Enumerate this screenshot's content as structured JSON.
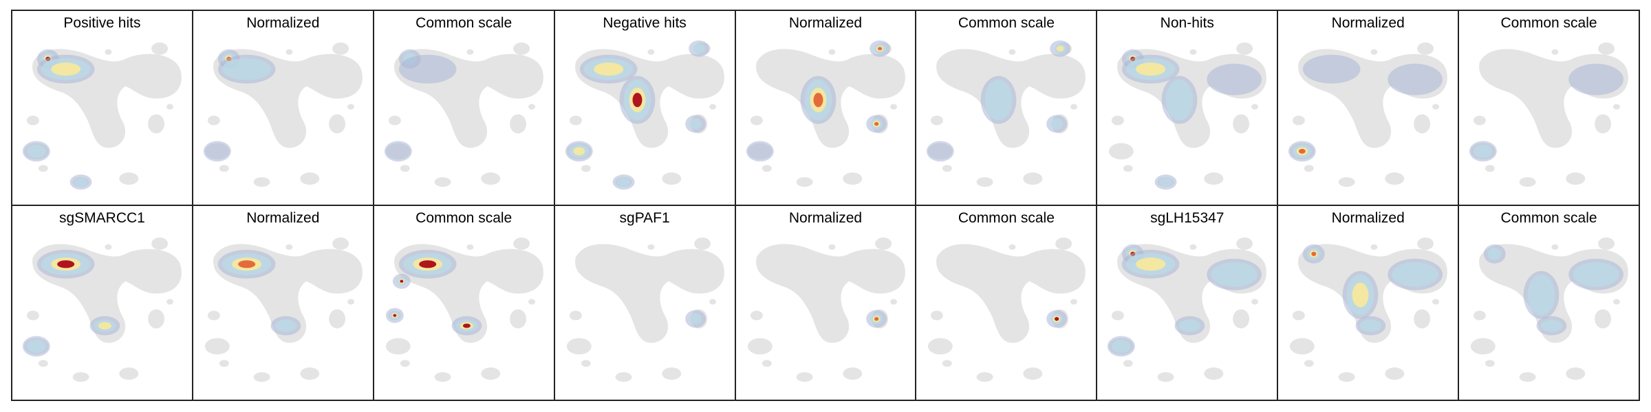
{
  "figure": {
    "rows": [
      {
        "panels": [
          {
            "title": "Positive hits",
            "condition": "Positive hits",
            "view": "raw",
            "hotspots": [
              {
                "region": "top-left-spot",
                "level": 1.0
              },
              {
                "region": "upper-left-arm",
                "level": 0.55
              },
              {
                "region": "lower-left-islands",
                "level": 0.45
              },
              {
                "region": "bottom-small-islands",
                "level": 0.35
              }
            ]
          },
          {
            "title": "Normalized",
            "condition": "Positive hits",
            "view": "normalized",
            "hotspots": [
              {
                "region": "top-left-spot",
                "level": 0.9
              },
              {
                "region": "upper-left-arm",
                "level": 0.45
              },
              {
                "region": "lower-left-islands",
                "level": 0.3
              }
            ]
          },
          {
            "title": "Common scale",
            "condition": "Positive hits",
            "view": "common",
            "hotspots": [
              {
                "region": "top-left-spot",
                "level": 0.45
              },
              {
                "region": "upper-left-arm",
                "level": 0.3
              },
              {
                "region": "lower-left-islands",
                "level": 0.25
              }
            ]
          },
          {
            "title": "Negative hits",
            "condition": "Negative hits",
            "view": "raw",
            "hotspots": [
              {
                "region": "center-stem",
                "level": 0.95
              },
              {
                "region": "upper-left-arm",
                "level": 0.6
              },
              {
                "region": "lower-left-islands",
                "level": 0.55
              },
              {
                "region": "top-right-spot",
                "level": 0.4
              },
              {
                "region": "right-middle-spot",
                "level": 0.45
              },
              {
                "region": "bottom-small-islands",
                "level": 0.45
              }
            ]
          },
          {
            "title": "Normalized",
            "condition": "Negative hits",
            "view": "normalized",
            "hotspots": [
              {
                "region": "top-right-spot",
                "level": 0.9
              },
              {
                "region": "right-middle-spot",
                "level": 0.8
              },
              {
                "region": "center-stem",
                "level": 0.85
              },
              {
                "region": "lower-left-islands",
                "level": 0.3
              }
            ]
          },
          {
            "title": "Common scale",
            "condition": "Negative hits",
            "view": "common",
            "hotspots": [
              {
                "region": "top-right-spot",
                "level": 0.55
              },
              {
                "region": "right-middle-spot",
                "level": 0.5
              },
              {
                "region": "center-stem",
                "level": 0.4
              },
              {
                "region": "lower-left-islands",
                "level": 0.25
              }
            ]
          },
          {
            "title": "Non-hits",
            "condition": "Non-hits",
            "view": "raw",
            "hotspots": [
              {
                "region": "top-left-spot",
                "level": 1.0
              },
              {
                "region": "upper-left-arm",
                "level": 0.6
              },
              {
                "region": "center-stem",
                "level": 0.35
              },
              {
                "region": "right-loop",
                "level": 0.3
              },
              {
                "region": "bottom-small-islands",
                "level": 0.5
              }
            ]
          },
          {
            "title": "Normalized",
            "condition": "Non-hits",
            "view": "normalized",
            "hotspots": [
              {
                "region": "lower-left-islands",
                "level": 0.9
              },
              {
                "region": "right-loop",
                "level": 0.3
              },
              {
                "region": "upper-left-arm",
                "level": 0.3
              }
            ]
          },
          {
            "title": "Common scale",
            "condition": "Non-hits",
            "view": "common",
            "hotspots": [
              {
                "region": "lower-left-islands",
                "level": 0.4
              },
              {
                "region": "right-loop",
                "level": 0.25
              }
            ]
          }
        ]
      },
      {
        "panels": [
          {
            "title": "sgSMARCC1",
            "condition": "sgSMARCC1",
            "view": "raw",
            "hotspots": [
              {
                "region": "upper-left-arm",
                "level": 1.0
              },
              {
                "region": "center-lower-spot",
                "level": 0.6
              },
              {
                "region": "lower-left-islands",
                "level": 0.35
              }
            ]
          },
          {
            "title": "Normalized",
            "condition": "sgSMARCC1",
            "view": "normalized",
            "hotspots": [
              {
                "region": "upper-left-arm",
                "level": 0.9
              },
              {
                "region": "center-lower-spot",
                "level": 0.5
              }
            ]
          },
          {
            "title": "Common scale",
            "condition": "sgSMARCC1",
            "view": "common",
            "hotspots": [
              {
                "region": "upper-left-arm",
                "level": 1.0
              },
              {
                "region": "center-lower-spot",
                "level": 1.0
              },
              {
                "region": "left-small-spot",
                "level": 1.0
              },
              {
                "region": "far-left-spot",
                "level": 1.0
              }
            ]
          },
          {
            "title": "sgPAF1",
            "condition": "sgPAF1",
            "view": "raw",
            "hotspots": [
              {
                "region": "right-middle-spot",
                "level": 0.35
              }
            ]
          },
          {
            "title": "Normalized",
            "condition": "sgPAF1",
            "view": "normalized",
            "hotspots": [
              {
                "region": "right-middle-spot",
                "level": 0.85
              }
            ]
          },
          {
            "title": "Common scale",
            "condition": "sgPAF1",
            "view": "common",
            "hotspots": [
              {
                "region": "right-middle-spot",
                "level": 1.0
              }
            ]
          },
          {
            "title": "sgLH15347",
            "condition": "sgLH15347",
            "view": "raw",
            "hotspots": [
              {
                "region": "top-left-spot",
                "level": 0.95
              },
              {
                "region": "upper-left-arm",
                "level": 0.6
              },
              {
                "region": "right-loop",
                "level": 0.45
              },
              {
                "region": "center-lower-spot",
                "level": 0.45
              },
              {
                "region": "lower-left-islands",
                "level": 0.35
              }
            ]
          },
          {
            "title": "Normalized",
            "condition": "sgLH15347",
            "view": "normalized",
            "hotspots": [
              {
                "region": "top-left-spot",
                "level": 0.8
              },
              {
                "region": "center-stem",
                "level": 0.6
              },
              {
                "region": "right-loop",
                "level": 0.45
              },
              {
                "region": "center-lower-spot",
                "level": 0.45
              }
            ]
          },
          {
            "title": "Common scale",
            "condition": "sgLH15347",
            "view": "common",
            "hotspots": [
              {
                "region": "top-left-spot",
                "level": 0.5
              },
              {
                "region": "center-stem",
                "level": 0.45
              },
              {
                "region": "right-loop",
                "level": 0.35
              },
              {
                "region": "center-lower-spot",
                "level": 0.35
              }
            ]
          }
        ]
      }
    ]
  },
  "colors": {
    "background_map": "#e4e4e4",
    "low": "#a9b6d6",
    "mid_low": "#bcd9e6",
    "mid": "#f4e7a2",
    "high": "#e56a3a",
    "max": "#b0141c",
    "border": "#222222"
  }
}
